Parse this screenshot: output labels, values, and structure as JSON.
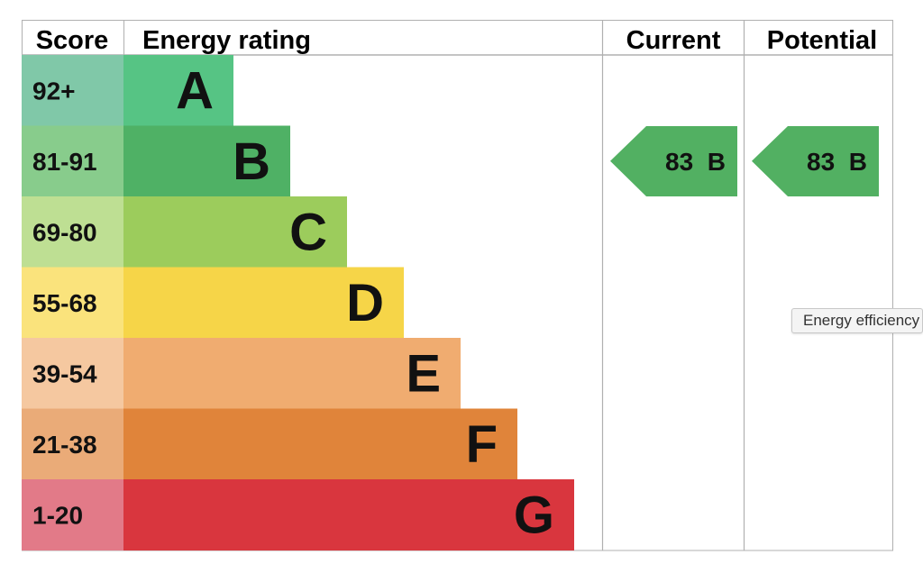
{
  "headers": {
    "score": "Score",
    "rating": "Energy rating",
    "current": "Current",
    "potential": "Potential"
  },
  "chart_data": {
    "type": "bar",
    "bands": [
      {
        "score": "92+",
        "letter": "A",
        "color": "#56c484",
        "score_color": "#80c8a8"
      },
      {
        "score": "81-91",
        "letter": "B",
        "color": "#4fb165",
        "score_color": "#88cc8c"
      },
      {
        "score": "69-80",
        "letter": "C",
        "color": "#9ccc5c",
        "score_color": "#bedf93"
      },
      {
        "score": "55-68",
        "letter": "D",
        "color": "#f6d548",
        "score_color": "#fae37c"
      },
      {
        "score": "39-54",
        "letter": "E",
        "color": "#f0ac70",
        "score_color": "#f5c8a0"
      },
      {
        "score": "21-38",
        "letter": "F",
        "color": "#e0843a",
        "score_color": "#eaab78"
      },
      {
        "score": "1-20",
        "letter": "G",
        "color": "#d9363e",
        "score_color": "#e27a88"
      }
    ],
    "current": {
      "value": 83,
      "letter": "B",
      "color": "#52b062"
    },
    "potential": {
      "value": 83,
      "letter": "B",
      "color": "#52b062"
    }
  },
  "tooltip": {
    "text": "Energy efficiency"
  }
}
